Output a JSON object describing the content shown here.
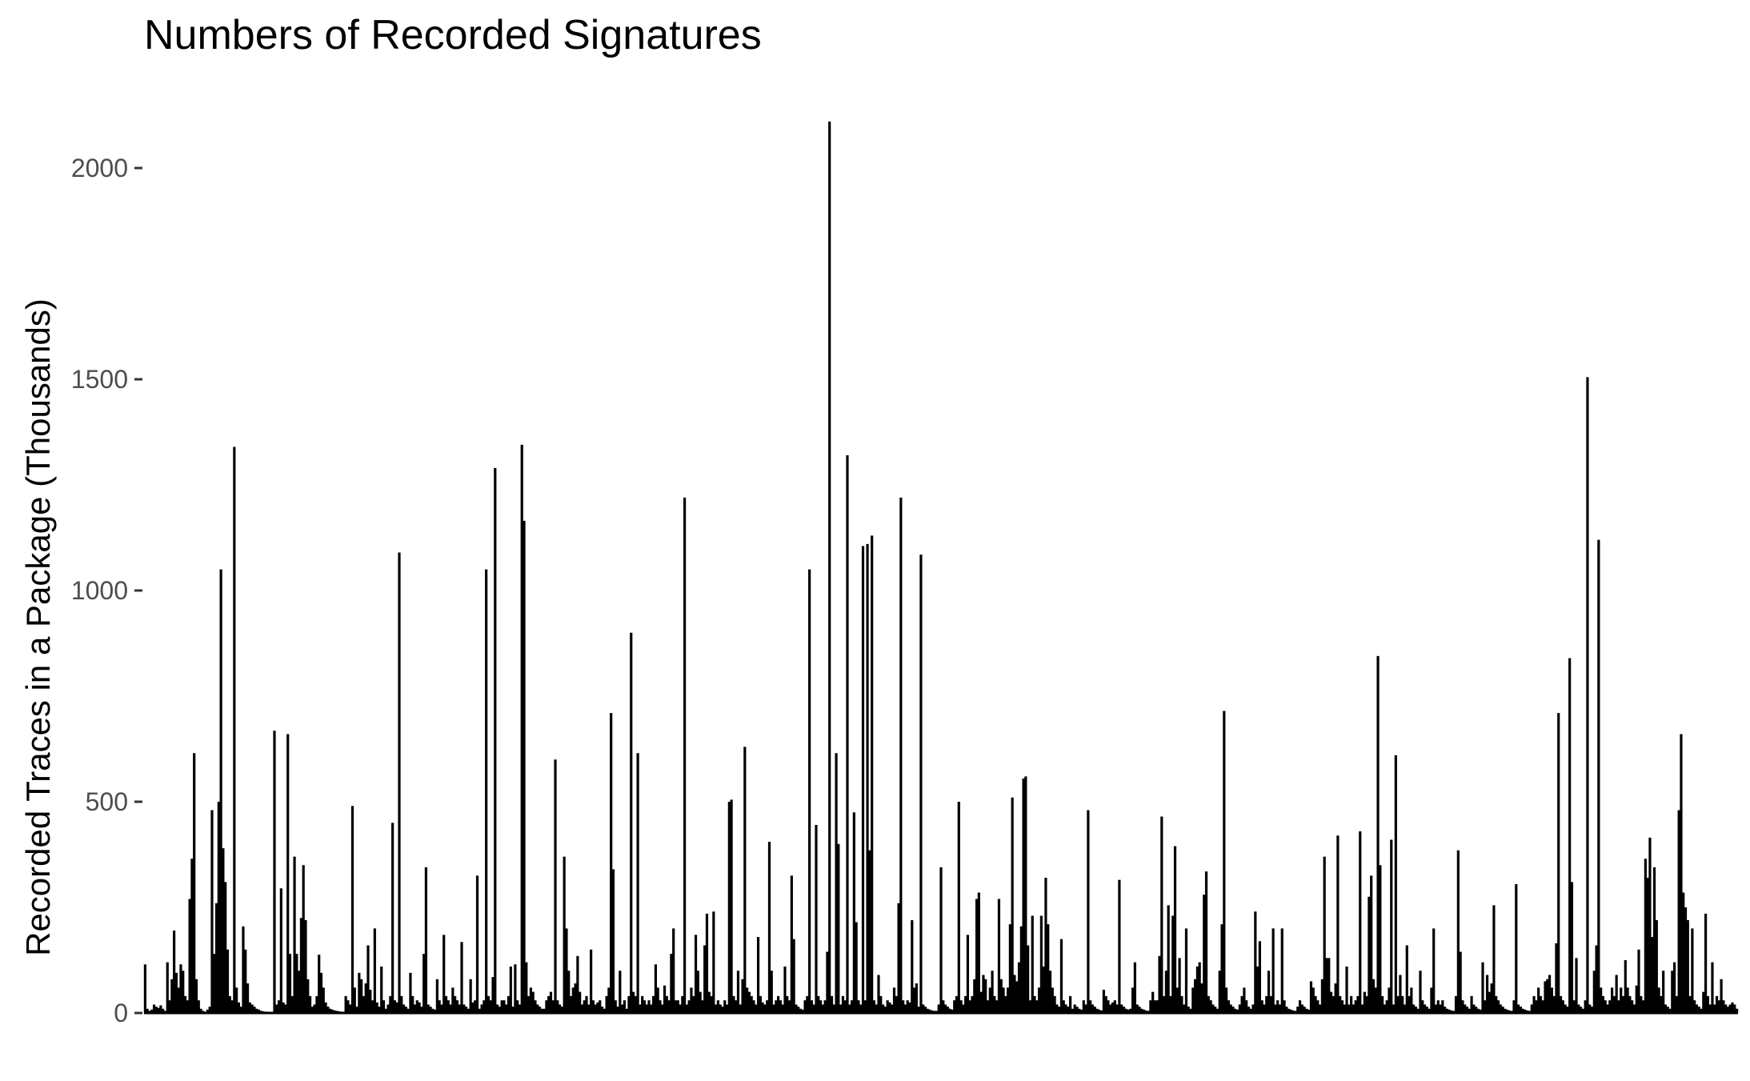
{
  "chart_data": {
    "type": "bar",
    "title": "Numbers of Recorded Signatures",
    "xlabel": "",
    "ylabel": "Recorded Traces in a Package (Thousands)",
    "ylim": [
      0,
      2200
    ],
    "yticks": [
      0,
      500,
      1000,
      1500,
      2000
    ],
    "grid": false,
    "n_packages": 1000,
    "series": [
      {
        "values": [
          115,
          10,
          5,
          8,
          20,
          15,
          12,
          18,
          10,
          5,
          120,
          30,
          80,
          195,
          95,
          60,
          115,
          100,
          40,
          30,
          270,
          365,
          615,
          80,
          30,
          10,
          5,
          3,
          8,
          15,
          480,
          140,
          260,
          500,
          1050,
          390,
          310,
          150,
          40,
          30,
          1340,
          60,
          25,
          15,
          205,
          150,
          70,
          25,
          20,
          15,
          10,
          8,
          5,
          4,
          3,
          3,
          2,
          2,
          668,
          20,
          30,
          295,
          25,
          20,
          660,
          140,
          40,
          370,
          140,
          100,
          225,
          350,
          220,
          80,
          40,
          15,
          20,
          40,
          138,
          95,
          60,
          25,
          15,
          10,
          8,
          6,
          5,
          4,
          3,
          3,
          40,
          30,
          20,
          490,
          60,
          15,
          95,
          80,
          40,
          70,
          160,
          55,
          30,
          200,
          25,
          15,
          110,
          30,
          10,
          20,
          40,
          450,
          30,
          25,
          1090,
          40,
          20,
          15,
          10,
          95,
          40,
          20,
          30,
          25,
          15,
          140,
          345,
          20,
          15,
          10,
          8,
          80,
          30,
          20,
          185,
          40,
          30,
          20,
          60,
          40,
          30,
          20,
          168,
          20,
          15,
          10,
          80,
          25,
          30,
          325,
          10,
          20,
          30,
          1050,
          40,
          30,
          85,
          1290,
          20,
          15,
          30,
          30,
          20,
          40,
          110,
          15,
          115,
          30,
          20,
          1345,
          1165,
          120,
          40,
          60,
          50,
          30,
          20,
          15,
          10,
          10,
          30,
          40,
          50,
          30,
          600,
          30,
          20,
          15,
          370,
          200,
          100,
          40,
          60,
          70,
          135,
          50,
          20,
          30,
          40,
          20,
          150,
          30,
          20,
          25,
          30,
          15,
          10,
          40,
          60,
          710,
          340,
          30,
          15,
          100,
          20,
          30,
          10,
          40,
          900,
          50,
          40,
          615,
          20,
          40,
          30,
          20,
          30,
          20,
          40,
          115,
          60,
          30,
          20,
          65,
          40,
          30,
          140,
          200,
          30,
          30,
          20,
          40,
          1220,
          20,
          30,
          60,
          40,
          185,
          100,
          50,
          30,
          160,
          235,
          50,
          40,
          240,
          20,
          30,
          20,
          15,
          30,
          20,
          500,
          505,
          40,
          30,
          100,
          20,
          80,
          630,
          60,
          50,
          40,
          30,
          20,
          180,
          40,
          25,
          20,
          30,
          405,
          100,
          20,
          30,
          40,
          30,
          20,
          110,
          40,
          30,
          325,
          175,
          20,
          15,
          10,
          8,
          30,
          40,
          1050,
          30,
          20,
          445,
          40,
          30,
          20,
          30,
          145,
          2110,
          40,
          20,
          615,
          400,
          20,
          40,
          30,
          1320,
          20,
          30,
          475,
          215,
          30,
          20,
          1105,
          30,
          1110,
          385,
          1130,
          30,
          20,
          90,
          40,
          20,
          15,
          30,
          25,
          20,
          60,
          40,
          260,
          1220,
          30,
          20,
          30,
          25,
          220,
          60,
          70,
          15,
          1085,
          20,
          15,
          10,
          8,
          6,
          5,
          5,
          20,
          345,
          30,
          20,
          15,
          10,
          8,
          30,
          40,
          500,
          30,
          20,
          40,
          185,
          30,
          40,
          80,
          270,
          285,
          50,
          90,
          80,
          30,
          60,
          100,
          40,
          30,
          270,
          80,
          60,
          40,
          60,
          210,
          510,
          90,
          75,
          120,
          205,
          555,
          560,
          160,
          30,
          230,
          40,
          30,
          60,
          230,
          110,
          320,
          210,
          100,
          60,
          40,
          20,
          15,
          175,
          30,
          20,
          15,
          40,
          10,
          20,
          15,
          10,
          8,
          30,
          20,
          480,
          30,
          20,
          15,
          10,
          8,
          6,
          55,
          40,
          30,
          20,
          25,
          30,
          20,
          315,
          20,
          15,
          10,
          8,
          10,
          60,
          120,
          20,
          15,
          10,
          8,
          6,
          5,
          30,
          50,
          30,
          30,
          135,
          465,
          40,
          100,
          255,
          40,
          230,
          395,
          60,
          130,
          40,
          20,
          200,
          15,
          10,
          60,
          80,
          110,
          120,
          70,
          280,
          335,
          40,
          30,
          20,
          15,
          10,
          100,
          210,
          715,
          60,
          30,
          20,
          15,
          10,
          8,
          20,
          40,
          60,
          30,
          15,
          10,
          20,
          240,
          110,
          170,
          30,
          20,
          40,
          100,
          40,
          200,
          20,
          30,
          20,
          200,
          30,
          15,
          10,
          8,
          6,
          5,
          15,
          30,
          20,
          15,
          10,
          8,
          75,
          60,
          40,
          30,
          20,
          80,
          370,
          130,
          130,
          50,
          40,
          70,
          420,
          40,
          30,
          20,
          110,
          20,
          40,
          20,
          30,
          40,
          430,
          20,
          50,
          40,
          275,
          325,
          80,
          60,
          845,
          350,
          40,
          20,
          30,
          60,
          410,
          20,
          610,
          40,
          90,
          40,
          20,
          160,
          40,
          60,
          20,
          15,
          10,
          100,
          30,
          20,
          15,
          10,
          60,
          200,
          20,
          30,
          20,
          30,
          15,
          10,
          8,
          6,
          5,
          40,
          385,
          145,
          30,
          20,
          15,
          10,
          40,
          20,
          15,
          10,
          8,
          120,
          30,
          90,
          50,
          70,
          255,
          40,
          30,
          20,
          15,
          10,
          8,
          6,
          5,
          30,
          305,
          20,
          15,
          10,
          8,
          6,
          5,
          20,
          40,
          30,
          60,
          40,
          30,
          75,
          80,
          90,
          60,
          40,
          165,
          710,
          40,
          30,
          20,
          15,
          840,
          310,
          30,
          130,
          20,
          15,
          10,
          30,
          1505,
          20,
          15,
          100,
          160,
          1120,
          60,
          40,
          30,
          20,
          30,
          60,
          40,
          90,
          30,
          60,
          40,
          125,
          60,
          40,
          30,
          20,
          65,
          150,
          40,
          30,
          365,
          320,
          415,
          180,
          345,
          220,
          60,
          40,
          100,
          20,
          15,
          10,
          100,
          120,
          40,
          480,
          660,
          285,
          250,
          220,
          40,
          200,
          30,
          20,
          15,
          10,
          50,
          235,
          40,
          20,
          120,
          20,
          40,
          30,
          80,
          30,
          20,
          15,
          20,
          25,
          20,
          10
        ],
        "color": "#000000"
      }
    ]
  }
}
